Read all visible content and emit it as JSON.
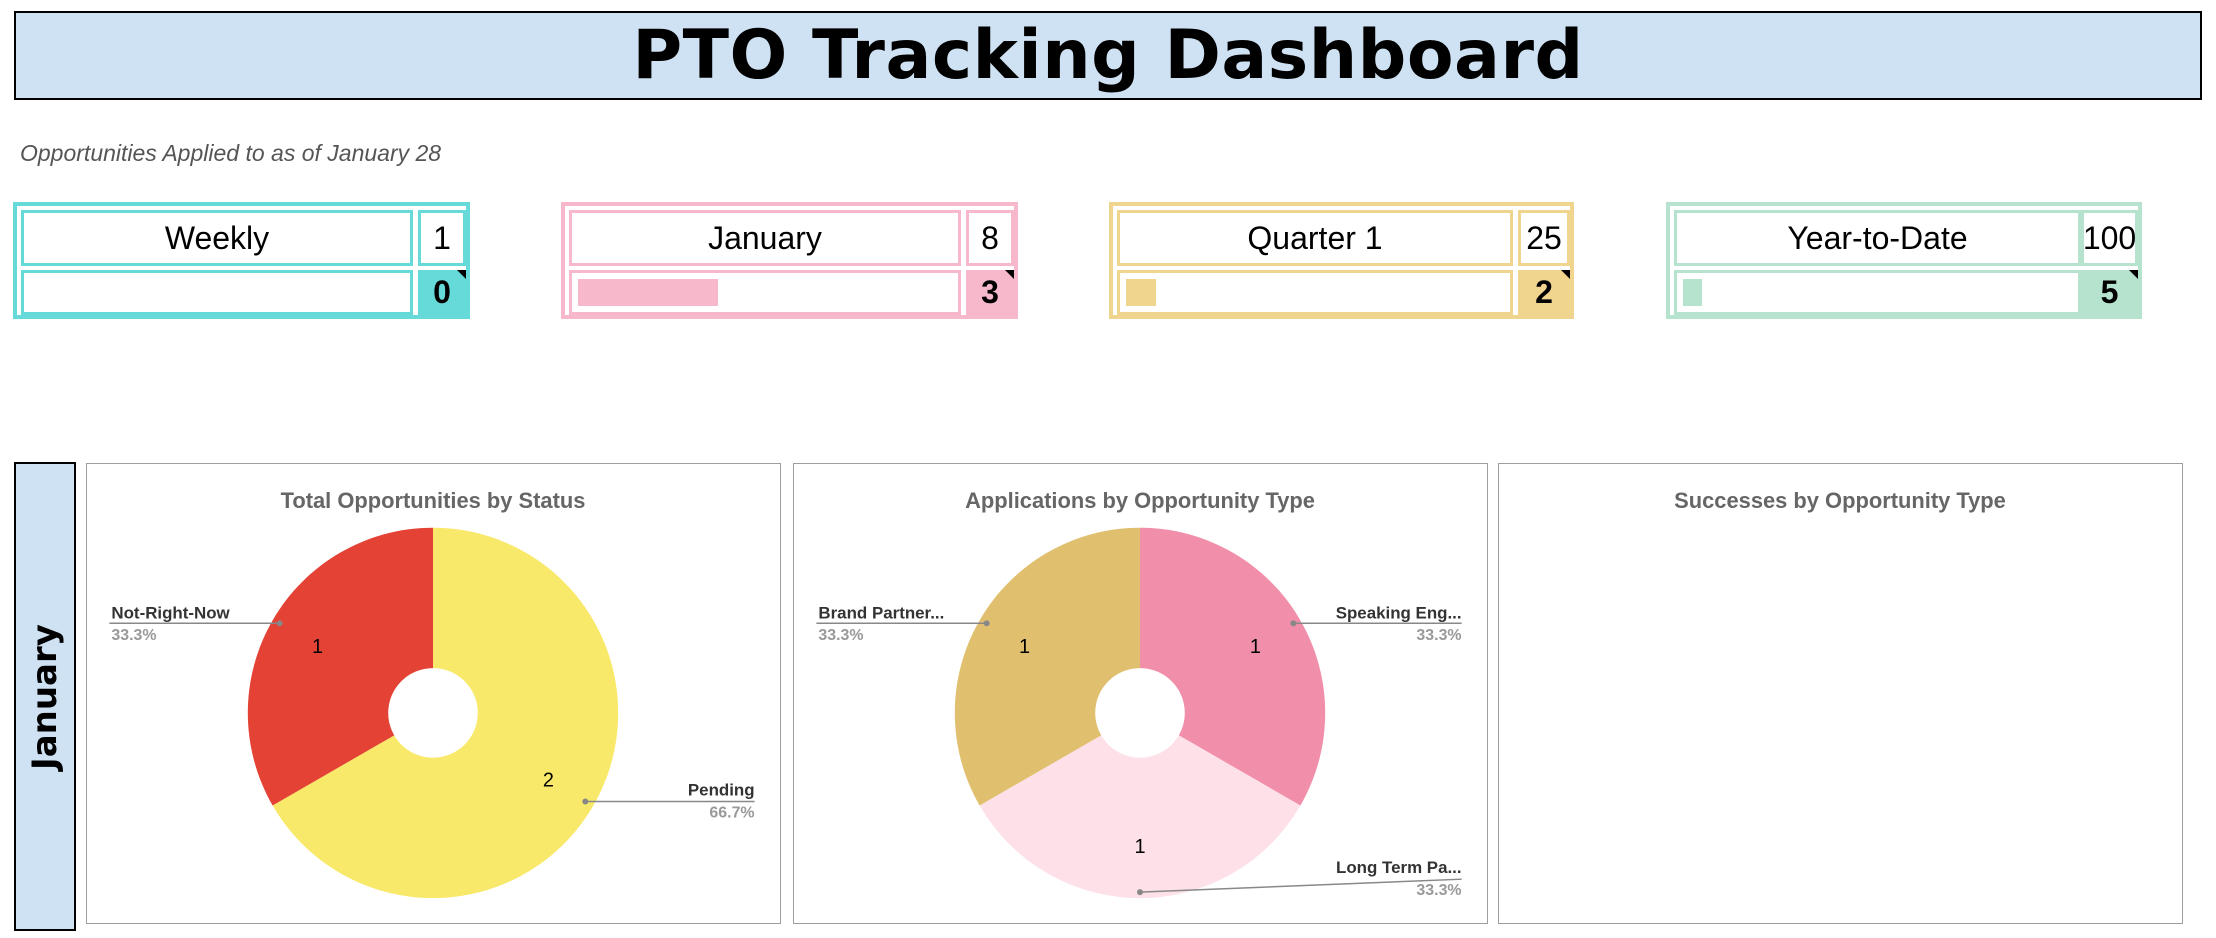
{
  "title": "PTO Tracking Dashboard",
  "subtitle": "Opportunities Applied to as of January 28",
  "kpis": [
    {
      "label": "Weekly",
      "goal": "1",
      "actual": "0",
      "progress": 0,
      "color": "#66d9d9"
    },
    {
      "label": "January",
      "goal": "8",
      "actual": "3",
      "progress": 0.375,
      "color": "#f8b8cc"
    },
    {
      "label": "Quarter 1",
      "goal": "25",
      "actual": "2",
      "progress": 0.08,
      "color": "#f0d58e"
    },
    {
      "label": "Year-to-Date",
      "goal": "100",
      "actual": "5",
      "progress": 0.05,
      "color": "#b5e3cd"
    }
  ],
  "section_label": "January",
  "chart_data": [
    {
      "type": "pie",
      "title": "Total Opportunities by Status",
      "donut": true,
      "slices": [
        {
          "label": "Pending",
          "value": 2,
          "percent": "66.7%",
          "color": "#f8e96a"
        },
        {
          "label": "Not-Right-Now",
          "value": 1,
          "percent": "33.3%",
          "color": "#e44235"
        }
      ]
    },
    {
      "type": "pie",
      "title": "Applications by Opportunity Type",
      "donut": true,
      "slices": [
        {
          "label": "Speaking Eng...",
          "value": 1,
          "percent": "33.3%",
          "color": "#f18faa"
        },
        {
          "label": "Long Term Pa...",
          "value": 1,
          "percent": "33.3%",
          "color": "#fde0e8"
        },
        {
          "label": "Brand Partner...",
          "value": 1,
          "percent": "33.3%",
          "color": "#e0bf6e"
        }
      ]
    },
    {
      "type": "pie",
      "title": "Successes by Opportunity Type",
      "donut": true,
      "slices": []
    }
  ]
}
